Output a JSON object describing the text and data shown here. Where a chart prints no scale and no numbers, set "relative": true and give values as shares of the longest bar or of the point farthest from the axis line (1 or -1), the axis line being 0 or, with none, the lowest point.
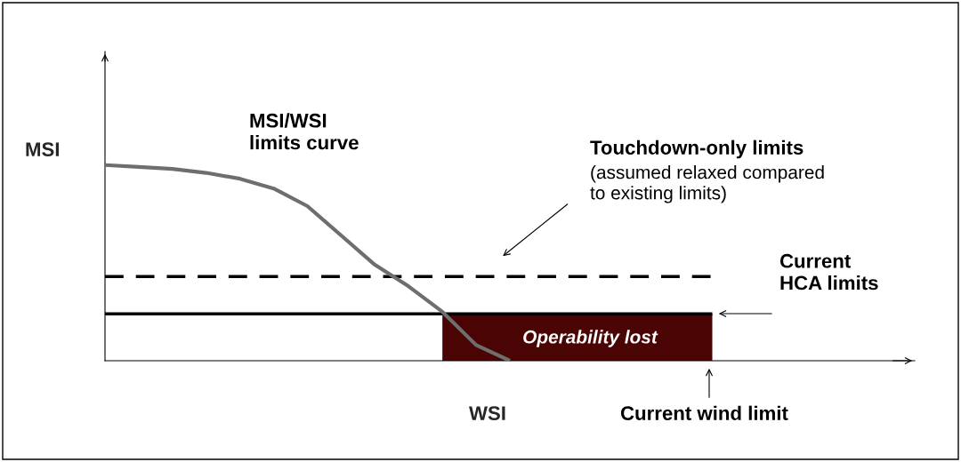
{
  "chart_data": {
    "type": "line",
    "relative": true,
    "xlabel": "WSI",
    "ylabel": "MSI",
    "categories": [
      null,
      null,
      null,
      null,
      null,
      null,
      null,
      null,
      null,
      null,
      null,
      null,
      null,
      null,
      null,
      null,
      null,
      null,
      null,
      null,
      null,
      null,
      null,
      null,
      null
    ],
    "series": [
      {
        "type": "area",
        "color": "#4a0404",
        "values": [
          null,
          null,
          null,
          null,
          null,
          null,
          null,
          null,
          null,
          null,
          0.24,
          0.24,
          0.24,
          0.24,
          0.24,
          0.24,
          0.24,
          0.24,
          0.24,
          null,
          null,
          null,
          null,
          null,
          null
        ]
      },
      {
        "color": "#000000",
        "line_style": "dashed",
        "values": [
          0.43,
          0.43,
          0.43,
          0.43,
          0.43,
          0.43,
          0.43,
          0.43,
          0.43,
          0.43,
          0.43,
          0.43,
          0.43,
          0.43,
          0.43,
          0.43,
          0.43,
          0.43,
          0.43,
          null,
          null,
          null,
          null,
          null,
          null
        ]
      },
      {
        "color": "#000000",
        "line_style": "solid",
        "values": [
          0.24,
          0.24,
          0.24,
          0.24,
          0.24,
          0.24,
          0.24,
          0.24,
          0.24,
          0.24,
          0.24,
          0.24,
          0.24,
          0.24,
          0.24,
          0.24,
          0.24,
          0.24,
          0.24,
          null,
          null,
          null,
          null,
          null,
          null
        ]
      },
      {
        "color": "#6e6e6e",
        "line_style": "solid",
        "values": [
          1.0,
          0.99,
          0.98,
          0.96,
          0.93,
          0.88,
          0.79,
          0.64,
          0.49,
          0.38,
          0.25,
          0.08,
          0,
          null,
          null,
          null,
          null,
          null,
          null,
          null,
          null,
          null,
          null,
          null,
          null
        ]
      }
    ],
    "annotations": [
      "MSI/WSI\nlimits curve",
      "Touchdown-only limits",
      "(assumed relaxed compared\nto existing limits)",
      "Current\nHCA limits",
      "Operability lost",
      "Current wind limit"
    ]
  }
}
